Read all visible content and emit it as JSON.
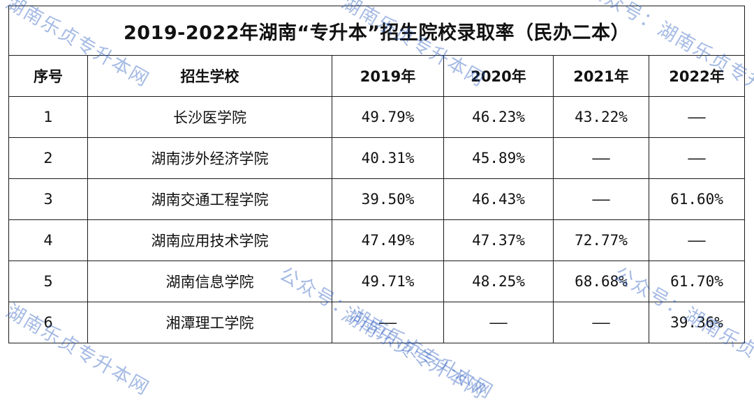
{
  "table": {
    "title": "2019-2022年湖南“专升本”招生院校录取率（民办二本）",
    "headers": [
      "序号",
      "招生学校",
      "2019年",
      "2020年",
      "2021年",
      "2022年"
    ],
    "rows": [
      {
        "no": "1",
        "school": "长沙医学院",
        "y2019": "49.79%",
        "y2020": "46.23%",
        "y2021": "43.22%",
        "y2022": "——"
      },
      {
        "no": "2",
        "school": "湖南涉外经济学院",
        "y2019": "40.31%",
        "y2020": "45.89%",
        "y2021": "——",
        "y2022": "——"
      },
      {
        "no": "3",
        "school": "湖南交通工程学院",
        "y2019": "39.50%",
        "y2020": "46.43%",
        "y2021": "——",
        "y2022": "61.60%"
      },
      {
        "no": "4",
        "school": "湖南应用技术学院",
        "y2019": "47.49%",
        "y2020": "47.37%",
        "y2021": "72.77%",
        "y2022": "——"
      },
      {
        "no": "5",
        "school": "湖南信息学院",
        "y2019": "49.71%",
        "y2020": "48.25%",
        "y2021": "68.68%",
        "y2022": "61.70%"
      },
      {
        "no": "6",
        "school": "湘潭理工学院",
        "y2019": "——",
        "y2020": "——",
        "y2021": "——",
        "y2022": "39.36%"
      }
    ]
  },
  "watermarks": [
    {
      "text": "湖南乐贞专升本网"
    },
    {
      "text": "公众号：湖南乐贞专升本网"
    }
  ]
}
